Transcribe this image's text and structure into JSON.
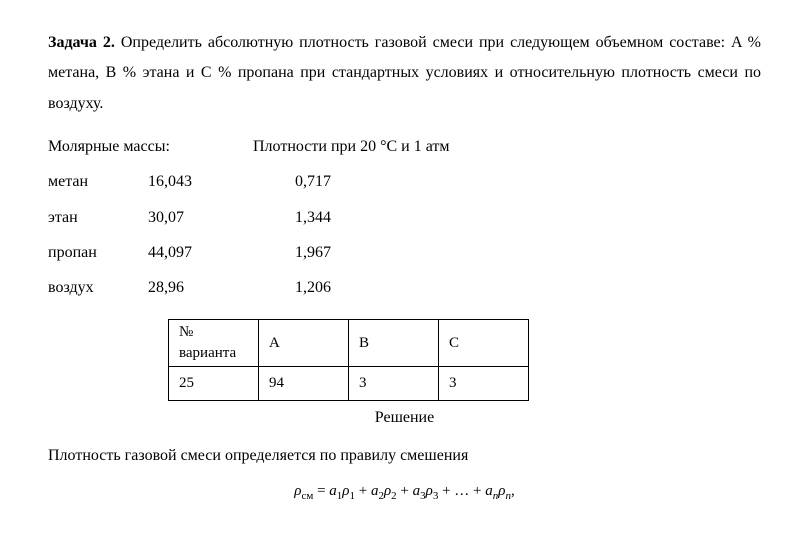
{
  "task": {
    "label": "Задача 2.",
    "text_part1": " Определить абсолютную плотность газовой смеси при следующем объемном составе: A % метана, B % этана и C % пропана при стандартных условиях и относительную плотность смеси по воздуху."
  },
  "molar": {
    "heading_left": "Молярные массы:",
    "heading_right": "Плотности при 20 °С и 1 атм",
    "rows": [
      {
        "name": "метан",
        "mass": "16,043",
        "density": "0,717"
      },
      {
        "name": "этан",
        "mass": "30,07",
        "density": "1,344"
      },
      {
        "name": "пропан",
        "mass": "44,097",
        "density": "1,967"
      },
      {
        "name": "воздух",
        "mass": "28,96",
        "density": "1,206"
      }
    ]
  },
  "variant": {
    "header": {
      "num_line1": "№",
      "num_line2": "варианта",
      "a": "A",
      "b": "B",
      "c": "C"
    },
    "row": {
      "num": "25",
      "a": "94",
      "b": "3",
      "c": "3"
    }
  },
  "solution": {
    "label": "Решение",
    "intro": "Плотность газовой смеси определяется по правилу смешения"
  },
  "formula": {
    "rho": "ρ",
    "sub_cm": "см",
    "eq": " = ",
    "a": "a",
    "s1": "1",
    "s2": "2",
    "s3": "3",
    "sn": "n",
    "plus": " + ",
    "dots": " + … + ",
    "comma": ","
  }
}
